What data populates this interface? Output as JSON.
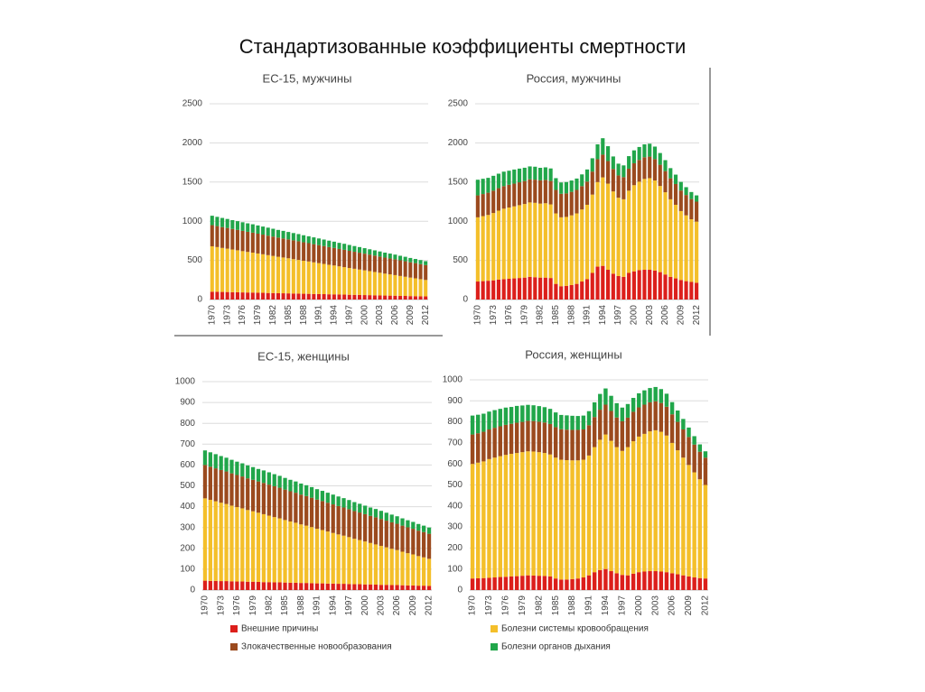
{
  "title": "Стандартизованные коэффициенты смертности",
  "legend": [
    {
      "name": "Внешние причины",
      "color": "#dc1f1b"
    },
    {
      "name": "Злокачественные новообразования",
      "color": "#9b4a1e"
    },
    {
      "name": "Болезни системы кровообращения",
      "color": "#f4bf2a"
    },
    {
      "name": "Болезни органов дыхания",
      "color": "#21a64a"
    }
  ],
  "chart_data": [
    {
      "type": "bar",
      "stacked": true,
      "title": "ЕС-15, мужчины",
      "categories": [
        "1970",
        null,
        null,
        "1973",
        null,
        null,
        "1976",
        null,
        null,
        "1979",
        null,
        null,
        "1982",
        null,
        null,
        "1985",
        null,
        null,
        "1988",
        null,
        null,
        "1991",
        null,
        null,
        "1994",
        null,
        null,
        "1997",
        null,
        null,
        "2000",
        null,
        null,
        "2003",
        null,
        null,
        "2006",
        null,
        null,
        "2009",
        null,
        null,
        "2012"
      ],
      "series": [
        {
          "color": "#dc1f1b",
          "values": [
            100,
            99,
            97,
            96,
            94,
            93,
            91,
            90,
            89,
            87,
            86,
            84,
            83,
            81,
            80,
            79,
            77,
            76,
            74,
            73,
            71,
            70,
            69,
            67,
            66,
            64,
            63,
            61,
            60,
            59,
            57,
            56,
            54,
            53,
            51,
            50,
            49,
            47,
            46,
            44,
            43,
            41,
            40
          ]
        },
        {
          "color": "#f4bf2a",
          "values": [
            580,
            571,
            562,
            554,
            545,
            536,
            527,
            518,
            510,
            501,
            492,
            483,
            474,
            465,
            457,
            448,
            439,
            430,
            421,
            413,
            404,
            395,
            386,
            377,
            369,
            360,
            351,
            342,
            333,
            324,
            316,
            307,
            298,
            289,
            280,
            272,
            263,
            254,
            245,
            236,
            228,
            219,
            210
          ]
        },
        {
          "color": "#9b4a1e",
          "values": [
            270,
            268,
            266,
            264,
            262,
            260,
            259,
            257,
            255,
            253,
            251,
            249,
            247,
            245,
            243,
            241,
            240,
            238,
            236,
            234,
            232,
            230,
            228,
            226,
            224,
            222,
            221,
            219,
            217,
            215,
            213,
            211,
            209,
            207,
            205,
            203,
            202,
            200,
            198,
            196,
            194,
            192,
            190
          ]
        },
        {
          "color": "#21a64a",
          "values": [
            120,
            118,
            117,
            115,
            113,
            112,
            110,
            108,
            107,
            105,
            103,
            102,
            100,
            98,
            97,
            95,
            93,
            92,
            90,
            88,
            87,
            85,
            83,
            82,
            80,
            78,
            77,
            75,
            73,
            72,
            70,
            68,
            67,
            65,
            63,
            62,
            60,
            58,
            57,
            55,
            53,
            52,
            50
          ]
        }
      ],
      "ylim": [
        0,
        2500
      ],
      "yticks": [
        0,
        500,
        1000,
        1500,
        2000,
        2500
      ],
      "grid": true
    },
    {
      "type": "bar",
      "stacked": true,
      "title": "Россия, мужчины",
      "categories": [
        "1970",
        null,
        null,
        "1973",
        null,
        null,
        "1976",
        null,
        null,
        "1979",
        null,
        null,
        "1982",
        null,
        null,
        "1985",
        null,
        null,
        "1988",
        null,
        null,
        "1991",
        null,
        null,
        "1994",
        null,
        null,
        "1997",
        null,
        null,
        "2000",
        null,
        null,
        "2003",
        null,
        null,
        "2006",
        null,
        null,
        "2009",
        null,
        null,
        "2012"
      ],
      "series": [
        {
          "color": "#dc1f1b",
          "values": [
            230,
            235,
            240,
            245,
            255,
            260,
            265,
            270,
            275,
            280,
            290,
            285,
            280,
            280,
            275,
            200,
            170,
            175,
            185,
            200,
            230,
            260,
            340,
            420,
            430,
            380,
            330,
            300,
            290,
            340,
            360,
            375,
            380,
            380,
            370,
            350,
            320,
            290,
            270,
            250,
            235,
            225,
            215
          ]
        },
        {
          "color": "#f4bf2a",
          "values": [
            820,
            830,
            840,
            860,
            880,
            900,
            910,
            920,
            930,
            940,
            950,
            950,
            945,
            950,
            940,
            900,
            880,
            880,
            890,
            900,
            920,
            950,
            1000,
            1080,
            1130,
            1100,
            1050,
            1000,
            990,
            1050,
            1100,
            1130,
            1160,
            1170,
            1150,
            1100,
            1050,
            990,
            940,
            880,
            840,
            800,
            780
          ]
        },
        {
          "color": "#9b4a1e",
          "values": [
            280,
            282,
            284,
            285,
            287,
            288,
            290,
            290,
            292,
            293,
            295,
            296,
            297,
            298,
            299,
            300,
            300,
            300,
            300,
            300,
            298,
            296,
            294,
            292,
            290,
            288,
            287,
            285,
            283,
            281,
            280,
            278,
            277,
            275,
            273,
            271,
            270,
            268,
            265,
            262,
            260,
            258,
            255
          ]
        },
        {
          "color": "#21a64a",
          "values": [
            200,
            195,
            190,
            190,
            185,
            185,
            180,
            180,
            175,
            170,
            165,
            165,
            160,
            160,
            160,
            150,
            145,
            145,
            145,
            145,
            150,
            155,
            170,
            190,
            210,
            190,
            160,
            150,
            150,
            160,
            165,
            165,
            165,
            165,
            160,
            150,
            140,
            130,
            120,
            110,
            100,
            90,
            80
          ]
        }
      ],
      "ylim": [
        0,
        2500
      ],
      "yticks": [
        0,
        500,
        1000,
        1500,
        2000,
        2500
      ],
      "grid": true
    },
    {
      "type": "bar",
      "stacked": true,
      "title": "ЕС-15, женщины",
      "categories": [
        "1970",
        null,
        null,
        "1973",
        null,
        null,
        "1976",
        null,
        null,
        "1979",
        null,
        null,
        "1982",
        null,
        null,
        "1985",
        null,
        null,
        "1988",
        null,
        null,
        "1991",
        null,
        null,
        "1994",
        null,
        null,
        "1997",
        null,
        null,
        "2000",
        null,
        null,
        "2003",
        null,
        null,
        "2006",
        null,
        null,
        "2009",
        null,
        null,
        "2012"
      ],
      "series": [
        {
          "color": "#dc1f1b",
          "values": [
            45,
            44,
            44,
            43,
            43,
            42,
            41,
            41,
            40,
            40,
            39,
            38,
            38,
            37,
            37,
            36,
            35,
            35,
            34,
            34,
            33,
            32,
            32,
            31,
            31,
            30,
            30,
            29,
            28,
            28,
            27,
            27,
            26,
            25,
            25,
            24,
            24,
            23,
            22,
            22,
            21,
            21,
            20
          ]
        },
        {
          "color": "#f4bf2a",
          "values": [
            395,
            389,
            382,
            376,
            370,
            363,
            357,
            351,
            344,
            338,
            332,
            326,
            319,
            313,
            307,
            300,
            294,
            288,
            281,
            275,
            269,
            262,
            256,
            250,
            243,
            237,
            231,
            225,
            218,
            212,
            206,
            199,
            193,
            187,
            180,
            174,
            168,
            161,
            155,
            149,
            142,
            136,
            130
          ]
        },
        {
          "color": "#9b4a1e",
          "values": [
            160,
            159,
            158,
            157,
            156,
            155,
            154,
            153,
            152,
            151,
            150,
            150,
            149,
            148,
            147,
            146,
            145,
            144,
            143,
            142,
            141,
            140,
            139,
            138,
            137,
            136,
            135,
            134,
            133,
            132,
            131,
            130,
            130,
            129,
            128,
            127,
            126,
            125,
            124,
            123,
            122,
            121,
            120
          ]
        },
        {
          "color": "#21a64a",
          "values": [
            70,
            69,
            68,
            67,
            66,
            65,
            64,
            63,
            62,
            61,
            60,
            60,
            59,
            58,
            57,
            56,
            55,
            54,
            53,
            52,
            51,
            50,
            49,
            48,
            47,
            46,
            45,
            44,
            43,
            42,
            41,
            40,
            40,
            39,
            38,
            37,
            36,
            35,
            34,
            33,
            32,
            31,
            30
          ]
        }
      ],
      "ylim": [
        0,
        1000
      ],
      "yticks": [
        0,
        100,
        200,
        300,
        400,
        500,
        600,
        700,
        800,
        900,
        1000
      ],
      "grid": true
    },
    {
      "type": "bar",
      "stacked": true,
      "title": "Россия, женщины",
      "categories": [
        "1970",
        null,
        null,
        "1973",
        null,
        null,
        "1976",
        null,
        null,
        "1979",
        null,
        null,
        "1982",
        null,
        null,
        "1985",
        null,
        null,
        "1988",
        null,
        null,
        "1991",
        null,
        null,
        "1994",
        null,
        null,
        "1997",
        null,
        null,
        "2000",
        null,
        null,
        "2003",
        null,
        null,
        "2006",
        null,
        null,
        "2009",
        null,
        null,
        "2012"
      ],
      "series": [
        {
          "color": "#dc1f1b",
          "values": [
            55,
            56,
            57,
            58,
            60,
            62,
            63,
            65,
            66,
            68,
            70,
            69,
            68,
            67,
            65,
            55,
            50,
            50,
            52,
            55,
            60,
            70,
            85,
            95,
            100,
            90,
            80,
            72,
            70,
            78,
            85,
            88,
            90,
            90,
            88,
            85,
            80,
            75,
            70,
            65,
            60,
            57,
            55
          ]
        },
        {
          "color": "#f4bf2a",
          "values": [
            545,
            550,
            555,
            565,
            570,
            575,
            580,
            583,
            586,
            588,
            590,
            590,
            588,
            585,
            580,
            575,
            570,
            568,
            565,
            562,
            560,
            570,
            595,
            620,
            640,
            620,
            600,
            590,
            610,
            630,
            645,
            655,
            665,
            670,
            665,
            650,
            620,
            590,
            560,
            530,
            500,
            470,
            445
          ]
        },
        {
          "color": "#9b4a1e",
          "values": [
            140,
            140,
            141,
            141,
            142,
            142,
            143,
            143,
            144,
            144,
            145,
            145,
            145,
            145,
            145,
            145,
            145,
            145,
            145,
            145,
            144,
            144,
            143,
            143,
            142,
            142,
            141,
            141,
            140,
            140,
            139,
            139,
            138,
            138,
            137,
            137,
            136,
            135,
            134,
            133,
            132,
            131,
            130
          ]
        },
        {
          "color": "#21a64a",
          "values": [
            90,
            88,
            86,
            85,
            84,
            83,
            82,
            80,
            80,
            78,
            76,
            75,
            74,
            73,
            72,
            70,
            68,
            68,
            67,
            66,
            66,
            67,
            70,
            75,
            77,
            72,
            68,
            65,
            65,
            66,
            67,
            68,
            68,
            68,
            66,
            62,
            58,
            54,
            50,
            45,
            40,
            35,
            30
          ]
        }
      ],
      "ylim": [
        0,
        1000
      ],
      "yticks": [
        0,
        100,
        200,
        300,
        400,
        500,
        600,
        700,
        800,
        900,
        1000
      ],
      "grid": true
    }
  ]
}
